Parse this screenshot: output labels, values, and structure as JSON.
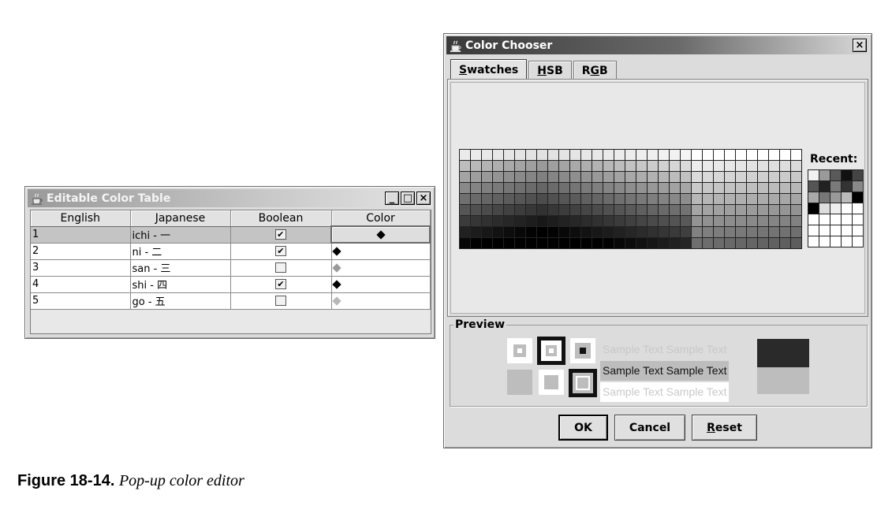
{
  "table_window": {
    "title": "Editable Color Table",
    "buttons": {
      "minimize": "_",
      "maximize": "□",
      "close": "×"
    },
    "columns": [
      "English",
      "Japanese",
      "Boolean",
      "Color"
    ],
    "rows": [
      {
        "english": "1",
        "japanese": "ichi - 一",
        "boolean": true,
        "color": "#000000",
        "selected": true
      },
      {
        "english": "2",
        "japanese": "ni - 二",
        "boolean": true,
        "color": "#000000",
        "selected": false
      },
      {
        "english": "3",
        "japanese": "san - 三",
        "boolean": false,
        "color": "#9a9a9a",
        "selected": false
      },
      {
        "english": "4",
        "japanese": "shi - 四",
        "boolean": true,
        "color": "#000000",
        "selected": false
      },
      {
        "english": "5",
        "japanese": "go - 五",
        "boolean": false,
        "color": "#b8b8b8",
        "selected": false
      }
    ],
    "check_glyph": "✔"
  },
  "chooser_window": {
    "title": "Color Chooser",
    "close_glyph": "×",
    "tabs": [
      {
        "mnemonic": "S",
        "rest": "watches",
        "active": true
      },
      {
        "mnemonic": "H",
        "rest": "SB",
        "active": false
      },
      {
        "prefix": "R",
        "mnemonic": "G",
        "rest": "B",
        "active": false
      }
    ],
    "recent_label": "Recent:",
    "preview_label": "Preview",
    "sample_text": "Sample Text",
    "buttons": {
      "ok": "OK",
      "cancel": "Cancel",
      "reset_mnemonic": "R",
      "reset_rest": "eset"
    },
    "colors": {
      "selected": "#2a2a2a",
      "background": "#bdbdbd"
    }
  },
  "caption": {
    "label": "Figure 18-14.",
    "text": "Pop-up color editor"
  }
}
